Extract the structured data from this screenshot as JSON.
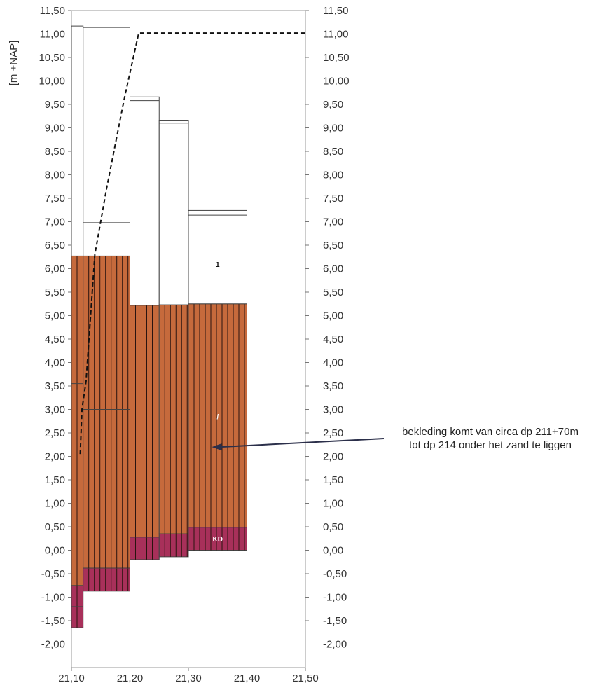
{
  "chart_data": {
    "type": "bar",
    "ylabel": "[m +NAP]",
    "xlim": [
      21.1,
      21.5
    ],
    "ylim": [
      -2.5,
      11.5
    ],
    "x_ticks": [
      "21,10",
      "21,20",
      "21,30",
      "21,40",
      "21,50"
    ],
    "x_tick_values": [
      21.1,
      21.2,
      21.3,
      21.4,
      21.5
    ],
    "y_ticks": [
      "11,50",
      "11,00",
      "10,50",
      "10,00",
      "9,50",
      "9,00",
      "8,50",
      "8,00",
      "7,50",
      "7,00",
      "6,50",
      "6,00",
      "5,50",
      "5,00",
      "4,50",
      "4,00",
      "3,50",
      "3,00",
      "2,50",
      "2,00",
      "1,50",
      "1,00",
      "0,50",
      "0,00",
      "-0,50",
      "-1,00",
      "-1,50",
      "-2,00"
    ],
    "y_tick_values": [
      11.5,
      11.0,
      10.5,
      10.0,
      9.5,
      9.0,
      8.5,
      8.0,
      7.5,
      7.0,
      6.5,
      6.0,
      5.5,
      5.0,
      4.5,
      4.0,
      3.5,
      3.0,
      2.5,
      2.0,
      1.5,
      1.0,
      0.5,
      0.0,
      -0.5,
      -1.0,
      -1.5,
      -2.0
    ],
    "grid": false,
    "colors": {
      "sand": "#ffffff",
      "cladding": "#c66a3c",
      "base": "#a8305a",
      "outline": "#444444",
      "dashed": "#111111"
    },
    "columns": [
      {
        "x0": 21.1,
        "x1": 21.12,
        "layers": [
          {
            "kind": "base",
            "bottom": -1.65,
            "top": -0.75
          },
          {
            "kind": "cladding",
            "bottom": -0.75,
            "top": 6.27
          },
          {
            "kind": "sand",
            "bottom": 6.27,
            "top": 11.17
          }
        ],
        "lines": [
          -1.2,
          3.55
        ]
      },
      {
        "x0": 21.12,
        "x1": 21.2,
        "layers": [
          {
            "kind": "base",
            "bottom": -0.87,
            "top": -0.38
          },
          {
            "kind": "cladding",
            "bottom": -0.38,
            "top": 6.27
          },
          {
            "kind": "sand",
            "bottom": 6.27,
            "top": 11.14
          }
        ],
        "lines": [
          3.0,
          3.82,
          6.98
        ]
      },
      {
        "x0": 21.2,
        "x1": 21.25,
        "layers": [
          {
            "kind": "base",
            "bottom": -0.2,
            "top": 0.28
          },
          {
            "kind": "cladding",
            "bottom": 0.28,
            "top": 5.22
          },
          {
            "kind": "sand",
            "bottom": 5.22,
            "top": 9.66
          }
        ],
        "lines": [
          9.58
        ]
      },
      {
        "x0": 21.25,
        "x1": 21.3,
        "layers": [
          {
            "kind": "base",
            "bottom": -0.14,
            "top": 0.35
          },
          {
            "kind": "cladding",
            "bottom": 0.35,
            "top": 5.23
          },
          {
            "kind": "sand",
            "bottom": 5.23,
            "top": 9.15
          }
        ],
        "lines": [
          9.1
        ]
      },
      {
        "x0": 21.3,
        "x1": 21.4,
        "layers": [
          {
            "kind": "base",
            "bottom": 0.0,
            "top": 0.49
          },
          {
            "kind": "cladding",
            "bottom": 0.49,
            "top": 5.25
          },
          {
            "kind": "sand",
            "bottom": 5.25,
            "top": 7.24
          }
        ],
        "lines": [
          7.14
        ]
      }
    ],
    "dashed_line": {
      "x": [
        21.115,
        21.118,
        21.125,
        21.14,
        21.16,
        21.19,
        21.215,
        21.5
      ],
      "y": [
        2.05,
        3.0,
        3.6,
        6.3,
        7.7,
        9.6,
        11.02,
        11.02
      ]
    },
    "layer_labels": [
      {
        "text": "1",
        "x": 21.35,
        "y": 6.1,
        "color": "#111111"
      },
      {
        "text": "/",
        "x": 21.35,
        "y": 2.85,
        "color": "#ffffff"
      },
      {
        "text": "KD",
        "x": 21.35,
        "y": 0.25,
        "color": "#ffffff"
      }
    ],
    "annotation": {
      "lines": [
        "bekleding komt van circa dp 211+70m",
        "tot dp 214 onder het zand te liggen"
      ],
      "arrow_target": {
        "x": 21.34,
        "y": 2.2
      }
    }
  }
}
